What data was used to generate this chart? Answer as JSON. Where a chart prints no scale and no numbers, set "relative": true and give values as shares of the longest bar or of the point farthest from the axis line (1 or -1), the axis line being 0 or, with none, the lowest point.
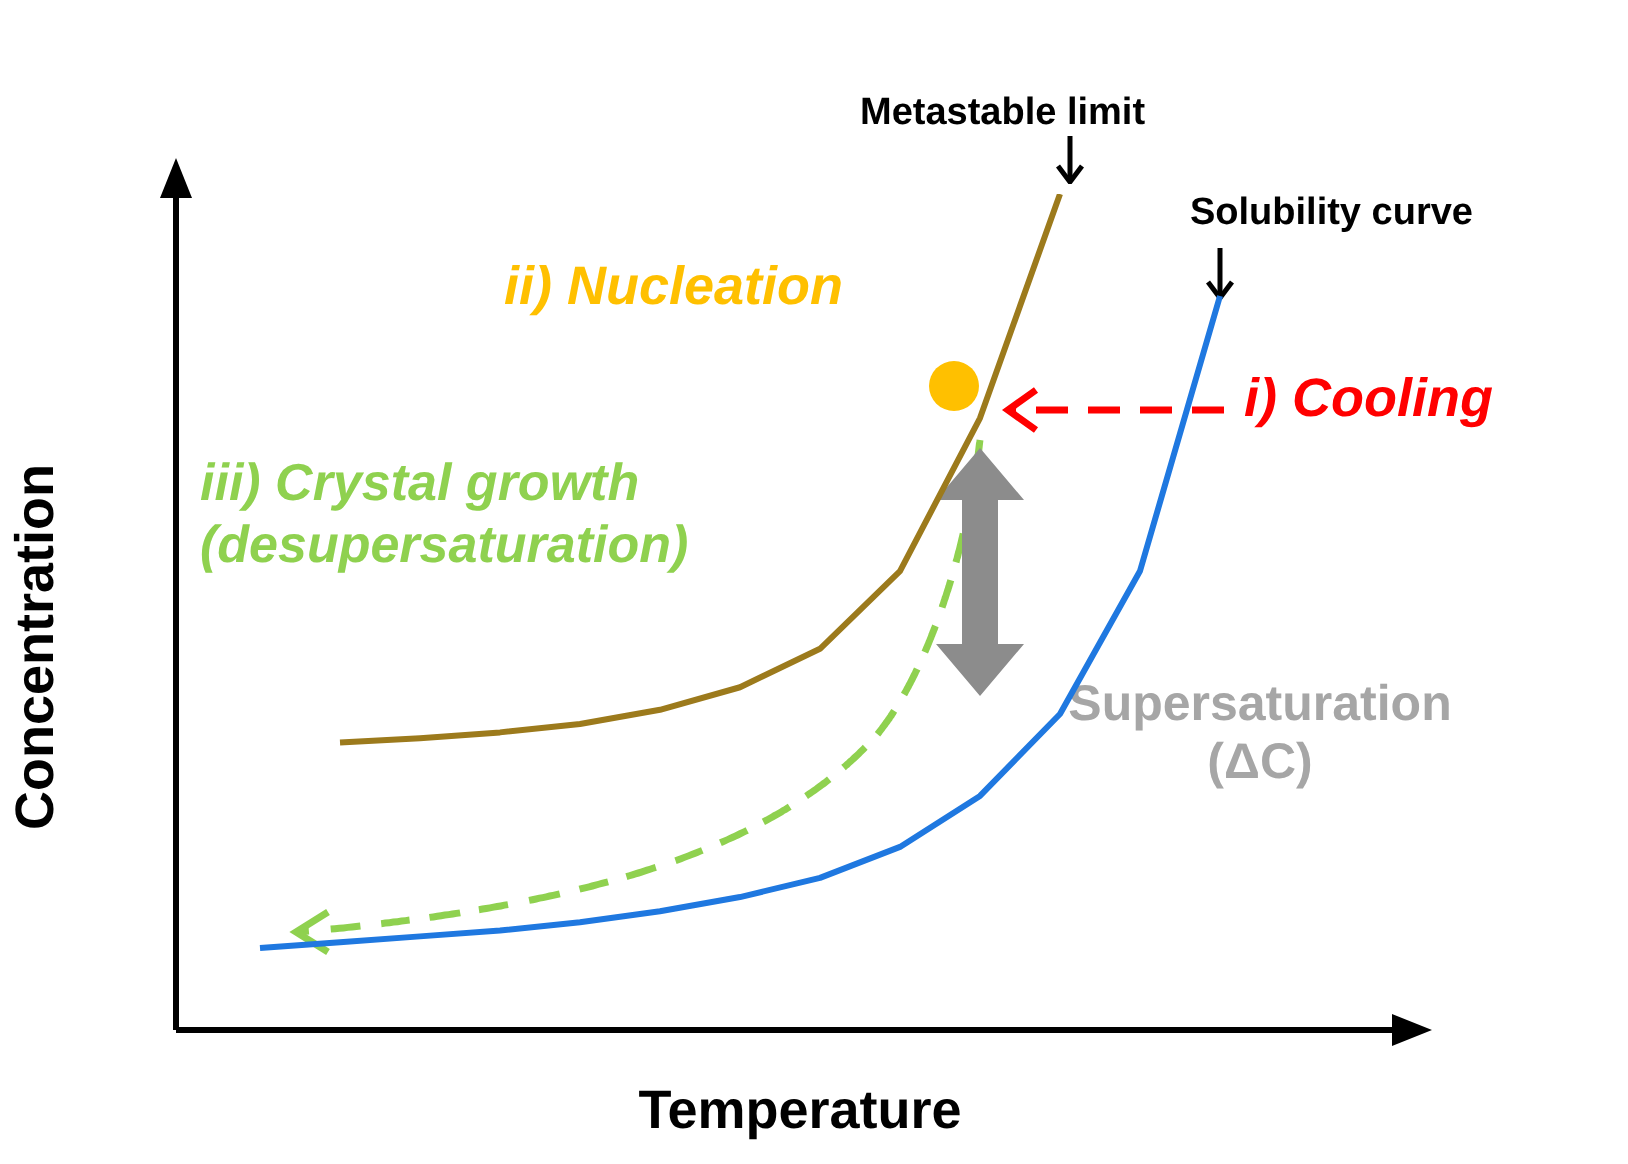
{
  "chart_data": {
    "type": "line",
    "relative": true,
    "xlabel": "Temperature",
    "ylabel": "Concentration",
    "marker": "none",
    "categories": [
      null,
      null,
      null,
      null,
      null,
      null,
      null,
      null,
      null,
      null,
      null,
      null,
      null,
      null,
      null,
      null
    ],
    "series": [
      {
        "name": "Metastable limit",
        "color": "#9c7a1c",
        "values": [
          null,
          null,
          0.344,
          0.349,
          0.356,
          0.366,
          0.383,
          0.41,
          0.456,
          0.549,
          0.732,
          1,
          null,
          null,
          null,
          null
        ]
      },
      {
        "name": "Solubility curve",
        "color": "#1f78e0",
        "values": [
          null,
          0.098,
          0.105,
          0.112,
          0.119,
          0.129,
          0.142,
          0.159,
          0.182,
          0.219,
          0.28,
          0.378,
          0.549,
          0.878,
          null,
          null
        ]
      }
    ],
    "annotations": [
      "ii) Nucleation",
      "i) Cooling",
      "iii) Crystal growth (desupersaturation)",
      "Supersaturation (ΔC)"
    ]
  }
}
